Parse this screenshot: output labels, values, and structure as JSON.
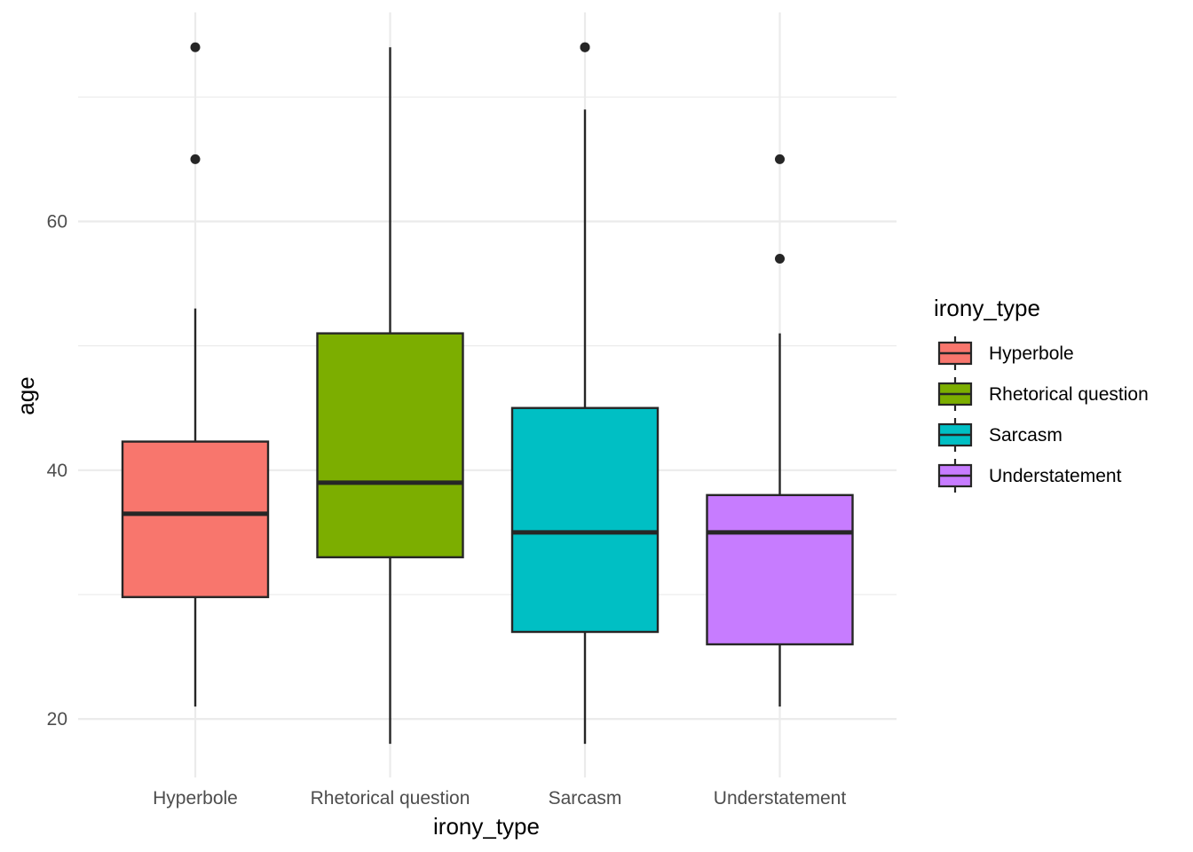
{
  "chart_data": {
    "type": "box",
    "xlabel": "irony_type",
    "ylabel": "age",
    "ylim": [
      15.3,
      76.8
    ],
    "yticks": [
      20,
      40,
      60
    ],
    "grid": true,
    "legend": {
      "title": "irony_type",
      "position": "right"
    },
    "categories": [
      "Hyperbole",
      "Rhetorical question",
      "Sarcasm",
      "Understatement"
    ],
    "series": [
      {
        "name": "Hyperbole",
        "color": "#F8766D",
        "whisker_low": 21,
        "q1": 29.8,
        "median": 36.5,
        "q3": 42.3,
        "whisker_high": 53,
        "outliers": [
          65,
          74
        ]
      },
      {
        "name": "Rhetorical question",
        "color": "#7CAE00",
        "whisker_low": 18,
        "q1": 33,
        "median": 39,
        "q3": 51,
        "whisker_high": 74,
        "outliers": []
      },
      {
        "name": "Sarcasm",
        "color": "#00BFC4",
        "whisker_low": 18,
        "q1": 27,
        "median": 35,
        "q3": 45,
        "whisker_high": 69,
        "outliers": [
          74,
          74
        ]
      },
      {
        "name": "Understatement",
        "color": "#C77CFF",
        "whisker_low": 21,
        "q1": 26,
        "median": 35,
        "q3": 38,
        "whisker_high": 51,
        "outliers": [
          57,
          65
        ]
      }
    ]
  }
}
